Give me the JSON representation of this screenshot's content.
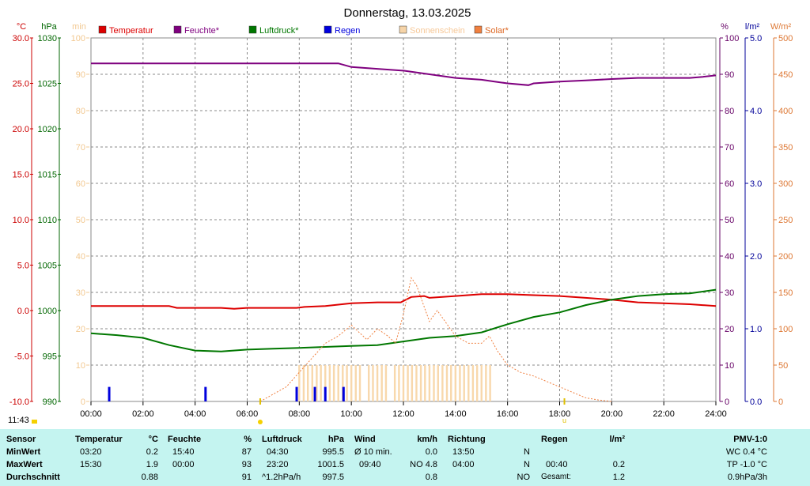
{
  "chart_data": {
    "type": "line",
    "title": "Donnerstag, 13.03.2025",
    "x_ticks": [
      "00:00",
      "02:00",
      "04:00",
      "06:00",
      "08:00",
      "10:00",
      "12:00",
      "14:00",
      "16:00",
      "18:00",
      "20:00",
      "22:00",
      "24:00"
    ],
    "axes": {
      "temp": {
        "unit": "°C",
        "min": -10,
        "max": 30,
        "ticks": [
          "30.0",
          "25.0",
          "20.0",
          "15.0",
          "10.0",
          "5.0",
          "0.0",
          "-5.0",
          "-10.0"
        ],
        "color": "#cc0000"
      },
      "pressure": {
        "unit": "hPa",
        "min": 990,
        "max": 1030,
        "ticks": [
          "1030",
          "1025",
          "1020",
          "1015",
          "1010",
          "1005",
          "1000",
          "995",
          "990"
        ],
        "color": "#006600"
      },
      "sunshine": {
        "unit": "min",
        "min": 0,
        "max": 100,
        "ticks": [
          "100",
          "90",
          "80",
          "70",
          "60",
          "50",
          "40",
          "30",
          "20",
          "10",
          "0"
        ],
        "color": "#f2c890"
      },
      "humidity": {
        "unit": "%",
        "min": 0,
        "max": 100,
        "ticks": [
          "100",
          "90",
          "80",
          "70",
          "60",
          "50",
          "40",
          "30",
          "20",
          "10",
          "0"
        ],
        "color": "#660066"
      },
      "rain": {
        "unit": "l/m²",
        "min": 0,
        "max": 5,
        "ticks": [
          "5.0",
          "4.0",
          "3.0",
          "2.0",
          "1.0",
          "0.0"
        ],
        "color": "#000099"
      },
      "solar": {
        "unit": "W/m²",
        "min": 0,
        "max": 500,
        "ticks": [
          "500",
          "450",
          "400",
          "350",
          "300",
          "250",
          "200",
          "150",
          "100",
          "50",
          "0"
        ],
        "color": "#dd7733"
      }
    },
    "legend": [
      {
        "name": "Temperatur",
        "color": "#dd0000"
      },
      {
        "name": "Feuchte*",
        "color": "#7f007f"
      },
      {
        "name": "Luftdruck*",
        "color": "#007700"
      },
      {
        "name": "Regen",
        "color": "#0000dd"
      },
      {
        "name": "Sonnenschein",
        "color": "#f6d4a8"
      },
      {
        "name": "Solar*",
        "color": "#f08040"
      }
    ],
    "series": [
      {
        "name": "Temperatur",
        "axis": "temp",
        "color": "#dd0000",
        "x": [
          0,
          1,
          2,
          3,
          3.3,
          4,
          5,
          5.5,
          6,
          7,
          7.9,
          8.2,
          9,
          10,
          11,
          11.9,
          12.3,
          12.8,
          13,
          14,
          15,
          16,
          17,
          18,
          19,
          20,
          21,
          22,
          23,
          24
        ],
        "y": [
          0.5,
          0.5,
          0.5,
          0.5,
          0.3,
          0.3,
          0.3,
          0.2,
          0.3,
          0.3,
          0.3,
          0.4,
          0.5,
          0.8,
          0.9,
          0.9,
          1.5,
          1.6,
          1.4,
          1.6,
          1.8,
          1.8,
          1.7,
          1.6,
          1.4,
          1.2,
          0.9,
          0.8,
          0.7,
          0.5
        ]
      },
      {
        "name": "Feuchte*",
        "axis": "humidity",
        "color": "#7f007f",
        "x": [
          0,
          2,
          4,
          6,
          8,
          9.5,
          10,
          11,
          12,
          13,
          14,
          15,
          15.5,
          16,
          16.8,
          17,
          18,
          19,
          20,
          21,
          22,
          23,
          23.5,
          24
        ],
        "y": [
          93,
          93,
          93,
          93,
          93,
          93,
          92,
          91.5,
          91,
          90,
          89,
          88.5,
          88,
          87.5,
          87,
          87.5,
          88,
          88.3,
          88.7,
          89,
          89,
          89,
          89.3,
          89.7
        ]
      },
      {
        "name": "Luftdruck*",
        "axis": "pressure",
        "color": "#007700",
        "x": [
          0,
          1,
          2,
          3,
          4,
          5,
          6,
          7,
          8,
          9,
          10,
          11,
          12,
          13,
          14,
          15,
          16,
          17,
          18,
          19,
          20,
          21,
          22,
          23,
          24
        ],
        "y": [
          997.5,
          997.3,
          997,
          996.2,
          995.6,
          995.5,
          995.7,
          995.8,
          995.9,
          996,
          996.1,
          996.2,
          996.6,
          997,
          997.2,
          997.6,
          998.5,
          999.3,
          999.8,
          1000.6,
          1001.2,
          1001.6,
          1001.8,
          1001.9,
          1002.3
        ]
      },
      {
        "name": "Solar*",
        "axis": "solar",
        "color": "#f08040",
        "x": [
          6.5,
          7,
          7.5,
          8,
          8.5,
          9,
          9.5,
          10,
          10.3,
          10.6,
          11,
          11.4,
          11.7,
          12,
          12.3,
          12.5,
          12.8,
          13,
          13.3,
          13.6,
          14,
          14.5,
          15,
          15.3,
          15.6,
          16,
          16.5,
          17,
          18,
          19,
          19.5,
          20
        ],
        "y": [
          0,
          10,
          20,
          40,
          60,
          80,
          90,
          105,
          95,
          85,
          100,
          90,
          80,
          120,
          170,
          160,
          130,
          110,
          125,
          110,
          90,
          80,
          80,
          90,
          70,
          50,
          40,
          35,
          20,
          5,
          2,
          0
        ]
      }
    ],
    "rain_bars": {
      "axis": "rain",
      "x": [
        0.7,
        4.4,
        7.9,
        8.6,
        9.0,
        9.7
      ],
      "y": [
        0.2,
        0.2,
        0.2,
        0.2,
        0.2,
        0.2
      ]
    },
    "sunshine_bars": {
      "axis": "sunshine",
      "x": [
        8.0,
        8.17,
        8.33,
        8.5,
        8.67,
        8.83,
        9.0,
        9.17,
        9.33,
        9.5,
        9.67,
        9.83,
        10.0,
        10.17,
        10.33,
        10.67,
        10.83,
        11.0,
        11.17,
        11.33,
        11.67,
        11.83,
        12.0,
        12.17,
        12.33,
        12.5,
        12.67,
        12.83,
        13.0,
        13.17,
        13.33,
        13.5,
        13.67,
        13.83,
        14.0,
        14.17,
        14.33,
        14.5,
        14.67,
        14.83,
        15.0,
        15.17,
        15.33
      ],
      "y": 10
    },
    "markers": {
      "sunrise": "06:30",
      "sunset": "18:11",
      "sunset_label": "u"
    }
  },
  "clock": "11:43",
  "table": {
    "row_labels": [
      "Sensor",
      "MinWert",
      "MaxWert",
      "Durchschnitt"
    ],
    "temperatur": {
      "title": "Temperatur",
      "unit": "°C",
      "rows": [
        [
          "03:20",
          "0.2"
        ],
        [
          "15:30",
          "1.9"
        ],
        [
          "",
          "0.88"
        ]
      ]
    },
    "feuchte": {
      "title": "Feuchte",
      "unit": "%",
      "rows": [
        [
          "15:40",
          "87"
        ],
        [
          "00:00",
          "93"
        ],
        [
          "",
          "91"
        ]
      ]
    },
    "luftdruck": {
      "title": "Luftdruck",
      "unit": "hPa",
      "rows": [
        [
          "04:30",
          "995.5"
        ],
        [
          "23:20",
          "1001.5"
        ],
        [
          "^1.2hPa/h",
          "997.5"
        ]
      ]
    },
    "wind": {
      "title": "Wind",
      "unit": "km/h",
      "rows": [
        [
          "Ø 10 min.",
          "0.0"
        ],
        [
          "09:40",
          "NO 4.8"
        ],
        [
          "",
          "0.8"
        ]
      ]
    },
    "richtung": {
      "title": "Richtung",
      "rows": [
        [
          "13:50",
          "N"
        ],
        [
          "04:00",
          "N"
        ],
        [
          "",
          "NO"
        ]
      ]
    },
    "regen": {
      "title": "Regen",
      "unit": "l/m²",
      "rows": [
        [
          "",
          ""
        ],
        [
          "00:40",
          "0.2"
        ],
        [
          "Gesamt:",
          "1.2"
        ]
      ]
    },
    "pmv": {
      "title": "PMV-1:0",
      "rows": [
        "WC 0.4 °C",
        "TP -1.0 °C",
        "0.9hPa/3h"
      ]
    }
  }
}
